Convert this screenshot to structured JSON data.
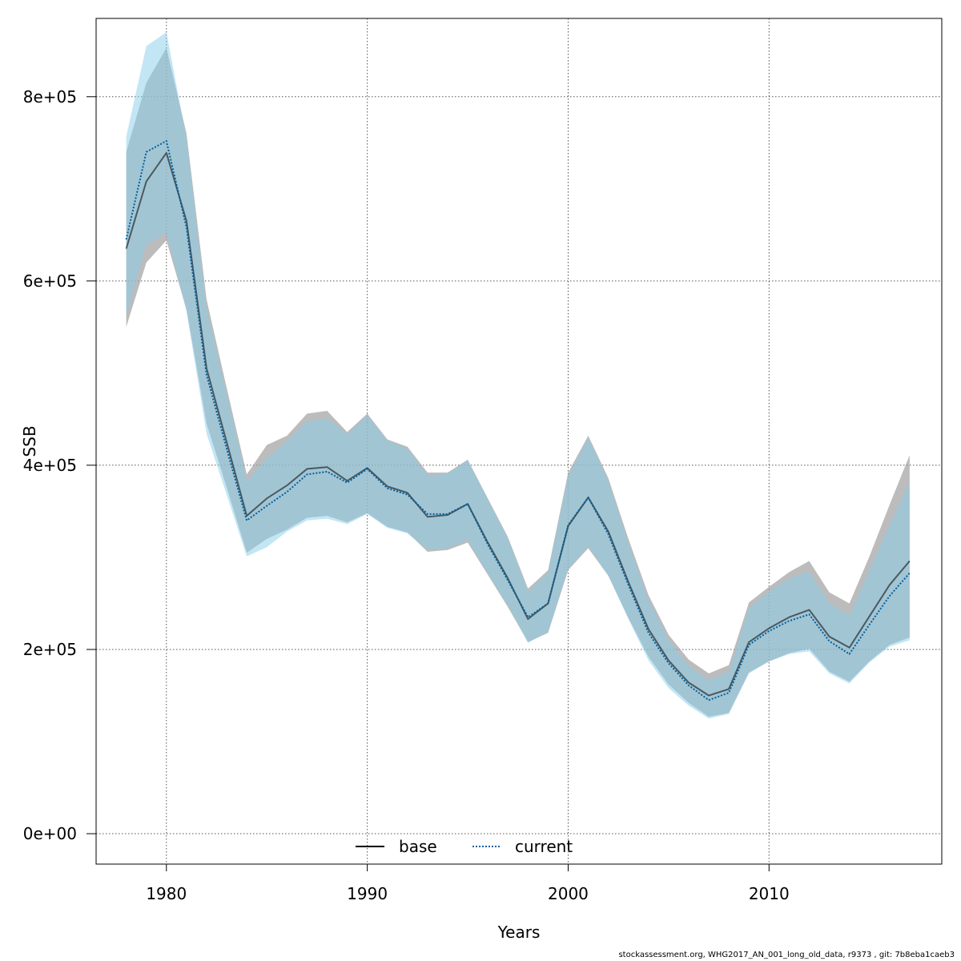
{
  "chart_data": {
    "type": "line",
    "xlabel": "Years",
    "ylabel": "SSB",
    "xlim": [
      1976.5,
      2018.6
    ],
    "ylim": [
      -33000,
      885000
    ],
    "xticks": [
      1980,
      1990,
      2000,
      2010
    ],
    "xtick_labels": [
      "1980",
      "1990",
      "2000",
      "2010"
    ],
    "yticks": [
      0,
      200000,
      400000,
      600000,
      800000
    ],
    "ytick_labels": [
      "0e+00",
      "2e+05",
      "4e+05",
      "6e+05",
      "8e+05"
    ],
    "grid": true,
    "legend_position": "bottom-center",
    "x": [
      1978,
      1979,
      1980,
      1981,
      1982,
      1983,
      1984,
      1985,
      1986,
      1987,
      1988,
      1989,
      1990,
      1991,
      1992,
      1993,
      1994,
      1995,
      1996,
      1997,
      1998,
      1999,
      2000,
      2001,
      2002,
      2003,
      2004,
      2005,
      2006,
      2007,
      2008,
      2009,
      2010,
      2011,
      2012,
      2013,
      2014,
      2015,
      2016,
      2017
    ],
    "series": [
      {
        "name": "base",
        "color": "#000000",
        "band_color": "#a0a0a0",
        "line_style": "solid",
        "values": [
          635000,
          708000,
          739000,
          665000,
          505000,
          425000,
          345000,
          364000,
          378000,
          396000,
          398000,
          383000,
          397000,
          377000,
          370000,
          344000,
          346000,
          358000,
          316000,
          277000,
          233000,
          250000,
          334000,
          365000,
          328000,
          273000,
          222000,
          188000,
          164000,
          150000,
          157000,
          208000,
          223000,
          235000,
          243000,
          214000,
          202000,
          236000,
          270000,
          296000
        ],
        "upper": [
          740000,
          815000,
          853000,
          760000,
          580000,
          484000,
          390000,
          422000,
          432000,
          456000,
          459000,
          436000,
          456000,
          428000,
          420000,
          392000,
          392000,
          406000,
          364000,
          322000,
          266000,
          286000,
          392000,
          432000,
          386000,
          320000,
          259000,
          216000,
          189000,
          174000,
          183000,
          251000,
          268000,
          284000,
          296000,
          262000,
          250000,
          301000,
          357000,
          411000
        ],
        "lower": [
          550000,
          620000,
          644000,
          569000,
          445000,
          376000,
          305000,
          320000,
          330000,
          343000,
          345000,
          338000,
          348000,
          333000,
          327000,
          306000,
          308000,
          316000,
          281000,
          246000,
          208000,
          218000,
          286000,
          310000,
          280000,
          234000,
          192000,
          162000,
          142000,
          127000,
          131000,
          175000,
          187000,
          196000,
          201000,
          176000,
          165000,
          187000,
          205000,
          213000
        ]
      },
      {
        "name": "current",
        "color": "#00609c",
        "band_color": "#87ceeb",
        "line_style": "dotted",
        "values": [
          645000,
          740000,
          752000,
          658000,
          498000,
          418000,
          340000,
          356000,
          371000,
          390000,
          393000,
          381000,
          396000,
          375000,
          368000,
          347000,
          347000,
          358000,
          314000,
          275000,
          235000,
          250000,
          335000,
          365000,
          325000,
          270000,
          218000,
          185000,
          161000,
          145000,
          153000,
          205000,
          220000,
          231000,
          238000,
          209000,
          195000,
          227000,
          258000,
          283000
        ],
        "upper": [
          757000,
          855000,
          870000,
          755000,
          570000,
          478000,
          383000,
          408000,
          426000,
          448000,
          451000,
          434000,
          454000,
          427000,
          418000,
          389000,
          391000,
          405000,
          363000,
          320000,
          263000,
          284000,
          388000,
          430000,
          383000,
          315000,
          254000,
          210000,
          182000,
          167000,
          176000,
          245000,
          263000,
          277000,
          285000,
          250000,
          237000,
          286000,
          335000,
          382000
        ],
        "lower": [
          563000,
          639000,
          652000,
          567000,
          434000,
          368000,
          301000,
          311000,
          328000,
          340000,
          342000,
          336000,
          347000,
          332000,
          326000,
          308000,
          310000,
          319000,
          282000,
          248000,
          207000,
          219000,
          287000,
          312000,
          280000,
          233000,
          188000,
          158000,
          139000,
          125000,
          130000,
          174000,
          187000,
          195000,
          198000,
          174000,
          163000,
          186000,
          203000,
          210000
        ]
      }
    ]
  },
  "footer_text": "stockassessment.org, WHG2017_AN_001_long_old_data, r9373 , git: 7b8eba1caeb3"
}
